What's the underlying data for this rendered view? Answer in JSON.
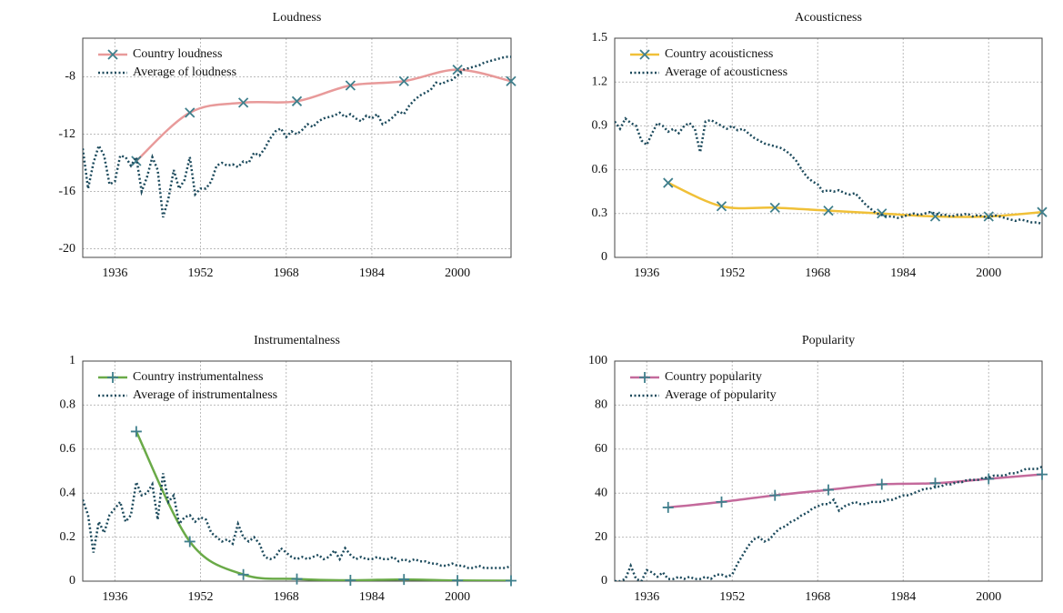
{
  "chart_data": [
    {
      "type": "line",
      "title": "Loudness",
      "xlim": [
        1930,
        2010
      ],
      "xticks": [
        1936,
        1952,
        1968,
        1984,
        2000
      ],
      "ylim": [
        -20.6,
        -5.3
      ],
      "yticks": [
        -20,
        -16,
        -12,
        -8
      ],
      "grid": true,
      "legend": "upper left",
      "series": [
        {
          "name": "Country loudness",
          "color": "#e89a9a",
          "linestyle": "solid",
          "marker": "x",
          "x": [
            1940,
            1950,
            1960,
            1970,
            1980,
            1990,
            2000,
            2010
          ],
          "values": [
            -13.87,
            -10.5,
            -9.8,
            -9.7,
            -8.6,
            -8.3,
            -7.5,
            -8.3
          ]
        },
        {
          "name": "Average of loudness",
          "color": "#1c4a5c",
          "linestyle": "dotted",
          "x": [
            1930,
            1931,
            1932,
            1933,
            1934,
            1935,
            1936,
            1937,
            1938,
            1939,
            1940,
            1941,
            1942,
            1943,
            1944,
            1945,
            1946,
            1947,
            1948,
            1949,
            1950,
            1951,
            1952,
            1953,
            1954,
            1955,
            1956,
            1957,
            1958,
            1959,
            1960,
            1961,
            1962,
            1963,
            1964,
            1965,
            1966,
            1967,
            1968,
            1969,
            1970,
            1971,
            1972,
            1973,
            1974,
            1975,
            1976,
            1977,
            1978,
            1979,
            1980,
            1981,
            1982,
            1983,
            1984,
            1985,
            1986,
            1987,
            1988,
            1989,
            1990,
            1991,
            1992,
            1993,
            1994,
            1995,
            1996,
            1997,
            1998,
            1999,
            2000,
            2001,
            2002,
            2003,
            2004,
            2005,
            2006,
            2007,
            2008,
            2009,
            2010
          ],
          "values": [
            -13,
            -15.8,
            -14,
            -12.8,
            -13.5,
            -15.5,
            -15.3,
            -13.5,
            -13.6,
            -14.2,
            -13.6,
            -16,
            -15,
            -13.6,
            -14.5,
            -17.8,
            -16.5,
            -14.5,
            -15.8,
            -15.2,
            -13.6,
            -16.2,
            -15.8,
            -15.8,
            -15.3,
            -14.2,
            -14,
            -14.2,
            -14.1,
            -14.3,
            -13.9,
            -14,
            -13.3,
            -13.5,
            -13,
            -12.3,
            -11.8,
            -11.6,
            -12.2,
            -11.8,
            -12,
            -11.7,
            -11.3,
            -11.5,
            -11.1,
            -10.9,
            -10.8,
            -10.7,
            -10.5,
            -10.8,
            -10.6,
            -10.9,
            -11.1,
            -10.7,
            -10.9,
            -10.6,
            -11.3,
            -11.1,
            -10.8,
            -10.4,
            -10.6,
            -10,
            -9.6,
            -9.3,
            -9.1,
            -8.9,
            -8.4,
            -8.5,
            -8.3,
            -8.2,
            -7.9,
            -7.5,
            -7.4,
            -7.3,
            -7.2,
            -7,
            -6.9,
            -6.8,
            -6.7,
            -6.6,
            -6.6
          ]
        }
      ]
    },
    {
      "type": "line",
      "title": "Acousticness",
      "xlim": [
        1930,
        2010
      ],
      "xticks": [
        1936,
        1952,
        1968,
        1984,
        2000
      ],
      "ylim": [
        0,
        1.5
      ],
      "yticks": [
        0,
        0.3,
        0.6,
        0.9,
        1.2,
        1.5
      ],
      "grid": true,
      "legend": "upper left",
      "series": [
        {
          "name": "Country acousticness",
          "color": "#f0c038",
          "linestyle": "solid",
          "marker": "x",
          "x": [
            1940,
            1950,
            1960,
            1970,
            1980,
            1990,
            2000,
            2010
          ],
          "values": [
            0.51,
            0.35,
            0.34,
            0.32,
            0.3,
            0.28,
            0.28,
            0.31
          ]
        },
        {
          "name": "Average of acousticness",
          "color": "#1c4a5c",
          "linestyle": "dotted",
          "x": [
            1930,
            1931,
            1932,
            1933,
            1934,
            1935,
            1936,
            1937,
            1938,
            1939,
            1940,
            1941,
            1942,
            1943,
            1944,
            1945,
            1946,
            1947,
            1948,
            1949,
            1950,
            1951,
            1952,
            1953,
            1954,
            1955,
            1956,
            1957,
            1958,
            1959,
            1960,
            1961,
            1962,
            1963,
            1964,
            1965,
            1966,
            1967,
            1968,
            1969,
            1970,
            1971,
            1972,
            1973,
            1974,
            1975,
            1976,
            1977,
            1978,
            1979,
            1980,
            1981,
            1982,
            1983,
            1984,
            1985,
            1986,
            1987,
            1988,
            1989,
            1990,
            1991,
            1992,
            1993,
            1994,
            1995,
            1996,
            1997,
            1998,
            1999,
            2000,
            2001,
            2002,
            2003,
            2004,
            2005,
            2006,
            2007,
            2008,
            2009,
            2010
          ],
          "values": [
            0.93,
            0.88,
            0.95,
            0.92,
            0.9,
            0.8,
            0.77,
            0.85,
            0.92,
            0.9,
            0.86,
            0.88,
            0.85,
            0.9,
            0.92,
            0.88,
            0.72,
            0.93,
            0.94,
            0.92,
            0.9,
            0.88,
            0.9,
            0.87,
            0.88,
            0.85,
            0.82,
            0.8,
            0.78,
            0.77,
            0.76,
            0.75,
            0.73,
            0.7,
            0.66,
            0.6,
            0.55,
            0.52,
            0.5,
            0.45,
            0.46,
            0.45,
            0.46,
            0.44,
            0.43,
            0.44,
            0.4,
            0.36,
            0.33,
            0.3,
            0.29,
            0.28,
            0.28,
            0.27,
            0.28,
            0.29,
            0.3,
            0.29,
            0.3,
            0.31,
            0.3,
            0.29,
            0.29,
            0.28,
            0.29,
            0.29,
            0.3,
            0.28,
            0.29,
            0.28,
            0.27,
            0.29,
            0.28,
            0.27,
            0.26,
            0.25,
            0.26,
            0.25,
            0.24,
            0.24,
            0.23
          ]
        }
      ]
    },
    {
      "type": "line",
      "title": "Instrumentalness",
      "xlim": [
        1930,
        2010
      ],
      "xticks": [
        1936,
        1952,
        1968,
        1984,
        2000
      ],
      "ylim": [
        0,
        1
      ],
      "yticks": [
        0,
        0.2,
        0.4,
        0.6,
        0.8,
        1
      ],
      "grid": true,
      "legend": "upper left",
      "series": [
        {
          "name": "Country instrumentalness",
          "color": "#6aaa48",
          "linestyle": "solid",
          "marker": "+",
          "x": [
            1940,
            1950,
            1960,
            1970,
            1980,
            1990,
            2000,
            2010
          ],
          "values": [
            0.68,
            0.18,
            0.03,
            0.01,
            0.004,
            0.008,
            0.003,
            0.002
          ]
        },
        {
          "name": "Average of instrumentalness",
          "color": "#1c4a5c",
          "linestyle": "dotted",
          "x": [
            1930,
            1931,
            1932,
            1933,
            1934,
            1935,
            1936,
            1937,
            1938,
            1939,
            1940,
            1941,
            1942,
            1943,
            1944,
            1945,
            1946,
            1947,
            1948,
            1949,
            1950,
            1951,
            1952,
            1953,
            1954,
            1955,
            1956,
            1957,
            1958,
            1959,
            1960,
            1961,
            1962,
            1963,
            1964,
            1965,
            1966,
            1967,
            1968,
            1969,
            1970,
            1971,
            1972,
            1973,
            1974,
            1975,
            1976,
            1977,
            1978,
            1979,
            1980,
            1981,
            1982,
            1983,
            1984,
            1985,
            1986,
            1987,
            1988,
            1989,
            1990,
            1991,
            1992,
            1993,
            1994,
            1995,
            1996,
            1997,
            1998,
            1999,
            2000,
            2001,
            2002,
            2003,
            2004,
            2005,
            2006,
            2007,
            2008,
            2009,
            2010
          ],
          "values": [
            0.37,
            0.3,
            0.13,
            0.27,
            0.22,
            0.3,
            0.33,
            0.36,
            0.27,
            0.3,
            0.45,
            0.39,
            0.4,
            0.44,
            0.28,
            0.49,
            0.36,
            0.39,
            0.26,
            0.29,
            0.3,
            0.27,
            0.29,
            0.28,
            0.22,
            0.2,
            0.18,
            0.19,
            0.17,
            0.26,
            0.2,
            0.18,
            0.2,
            0.17,
            0.11,
            0.1,
            0.11,
            0.15,
            0.13,
            0.11,
            0.1,
            0.11,
            0.1,
            0.11,
            0.12,
            0.1,
            0.11,
            0.14,
            0.1,
            0.15,
            0.12,
            0.1,
            0.11,
            0.1,
            0.1,
            0.11,
            0.1,
            0.1,
            0.11,
            0.09,
            0.1,
            0.09,
            0.1,
            0.09,
            0.09,
            0.08,
            0.08,
            0.07,
            0.07,
            0.08,
            0.07,
            0.07,
            0.06,
            0.06,
            0.07,
            0.06,
            0.06,
            0.06,
            0.06,
            0.06,
            0.07
          ]
        }
      ]
    },
    {
      "type": "line",
      "title": "Popularity",
      "xlim": [
        1930,
        2010
      ],
      "xticks": [
        1936,
        1952,
        1968,
        1984,
        2000
      ],
      "ylim": [
        0,
        100
      ],
      "yticks": [
        0,
        20,
        40,
        60,
        80,
        100
      ],
      "grid": true,
      "legend": "upper left",
      "series": [
        {
          "name": "Country popularity",
          "color": "#c46a9c",
          "linestyle": "solid",
          "marker": "+",
          "x": [
            1940,
            1950,
            1960,
            1970,
            1980,
            1990,
            2000,
            2010
          ],
          "values": [
            33.5,
            36,
            39,
            41.5,
            44,
            44.5,
            46.5,
            48.5
          ]
        },
        {
          "name": "Average of popularity",
          "color": "#1c4a5c",
          "linestyle": "dotted",
          "x": [
            1930,
            1931,
            1932,
            1933,
            1934,
            1935,
            1936,
            1937,
            1938,
            1939,
            1940,
            1941,
            1942,
            1943,
            1944,
            1945,
            1946,
            1947,
            1948,
            1949,
            1950,
            1951,
            1952,
            1953,
            1954,
            1955,
            1956,
            1957,
            1958,
            1959,
            1960,
            1961,
            1962,
            1963,
            1964,
            1965,
            1966,
            1967,
            1968,
            1969,
            1970,
            1971,
            1972,
            1973,
            1974,
            1975,
            1976,
            1977,
            1978,
            1979,
            1980,
            1981,
            1982,
            1983,
            1984,
            1985,
            1986,
            1987,
            1988,
            1989,
            1990,
            1991,
            1992,
            1993,
            1994,
            1995,
            1996,
            1997,
            1998,
            1999,
            2000,
            2001,
            2002,
            2003,
            2004,
            2005,
            2006,
            2007,
            2008,
            2009,
            2010
          ],
          "values": [
            0,
            0,
            1,
            7,
            1,
            0,
            5,
            4,
            2,
            4,
            1,
            1,
            2,
            1,
            2,
            1,
            1,
            2,
            1,
            3,
            3,
            2,
            3,
            8,
            12,
            16,
            19,
            20,
            18,
            19,
            22,
            24,
            25,
            27,
            28,
            30,
            31,
            33,
            34,
            35,
            35,
            37,
            32,
            34,
            35,
            36,
            35,
            35,
            36,
            36,
            36,
            37,
            37,
            38,
            39,
            39,
            40,
            41,
            42,
            42,
            43,
            43,
            44,
            44,
            45,
            45,
            46,
            46,
            46,
            47,
            47,
            48,
            48,
            48,
            49,
            49,
            50,
            51,
            51,
            51,
            52
          ]
        }
      ]
    }
  ]
}
